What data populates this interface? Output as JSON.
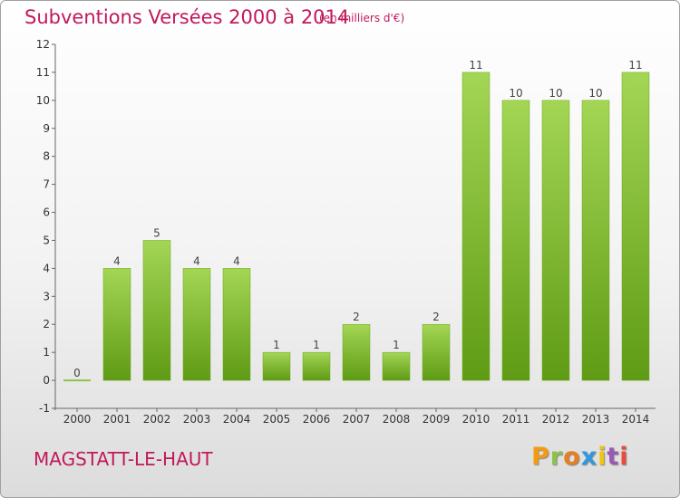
{
  "header": {
    "title": "Subventions Versées 2000 à 2014",
    "subtitle": "(en milliers d'€)"
  },
  "footer": {
    "commune": "MAGSTATT-LE-HAUT",
    "logo_text": "Proxiti"
  },
  "colors": {
    "title": "#c2185b",
    "bar_light": "#a3d655",
    "bar_dark": "#5f9b14",
    "axis": "#333333"
  },
  "chart_data": {
    "type": "bar",
    "categories": [
      "2000",
      "2001",
      "2002",
      "2003",
      "2004",
      "2005",
      "2006",
      "2007",
      "2008",
      "2009",
      "2010",
      "2011",
      "2012",
      "2013",
      "2014"
    ],
    "values": [
      0,
      4,
      5,
      4,
      4,
      1,
      1,
      2,
      1,
      2,
      11,
      10,
      10,
      10,
      11
    ],
    "data_labels": [
      "0",
      "4",
      "5",
      "4",
      "4",
      "1",
      "1",
      "2",
      "1",
      "2",
      "11",
      "10",
      "10",
      "10",
      "11"
    ],
    "y_ticks": [
      -1,
      0,
      1,
      2,
      3,
      4,
      5,
      6,
      7,
      8,
      9,
      10,
      11,
      12
    ],
    "ylim": [
      -1,
      12
    ],
    "grid": false,
    "legend": "none"
  }
}
